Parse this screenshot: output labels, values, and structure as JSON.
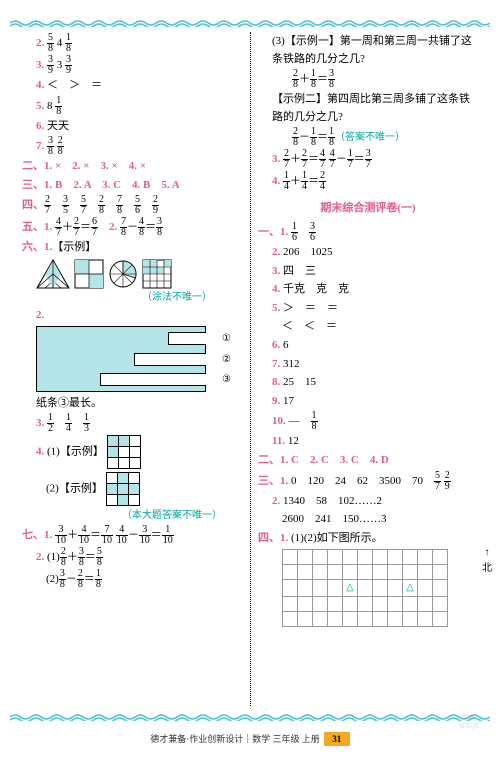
{
  "left": {
    "l2": {
      "n": "2.",
      "a_t": "5",
      "a_b": "8",
      "sp": "  4  ",
      "b_t": "1",
      "b_b": "8"
    },
    "l3": {
      "n": "3.",
      "a_t": "3",
      "a_b": "9",
      "sp": "  3  ",
      "b_t": "3",
      "b_b": "9"
    },
    "l4": {
      "n": "4.",
      "t": "＜　＞　＝"
    },
    "l5": {
      "n": "5.",
      "a": "8  ",
      "b_t": "1",
      "b_b": "8"
    },
    "l6": {
      "n": "6.",
      "t": "天天"
    },
    "l7": {
      "n": "7.",
      "a_t": "3",
      "a_b": "8",
      "sp": "  ",
      "b_t": "2",
      "b_b": "8"
    },
    "s2": {
      "h": "二、",
      "t": "1. ×　2. ×　3. ×　4. ×"
    },
    "s3": {
      "h": "三、",
      "t": "1. B　2. A　3. C　4. B　5. A"
    },
    "s4": {
      "h": "四、",
      "f": [
        [
          "2",
          "7"
        ],
        [
          "3",
          "5"
        ],
        [
          "5",
          "7"
        ],
        [
          "2",
          "8"
        ],
        [
          "7",
          "8"
        ],
        [
          "5",
          "6"
        ],
        [
          "2",
          "9"
        ]
      ]
    },
    "s5": {
      "h": "五、",
      "n1": "1.",
      "e1": [
        [
          "4",
          "7"
        ],
        "＋",
        [
          "2",
          "7"
        ],
        "＝",
        [
          "6",
          "7"
        ]
      ],
      "n2": "2.",
      "e2": [
        [
          "7",
          "8"
        ],
        "－",
        [
          "4",
          "8"
        ],
        "＝",
        [
          "3",
          "8"
        ]
      ]
    },
    "s6": {
      "h": "六、",
      "n1": "1.",
      "t1": "【示例】"
    },
    "note1": "（涂法不唯一）",
    "s6_2": {
      "n": "2."
    },
    "paper_note": "纸条③最长。",
    "s6_3": {
      "n": "3.",
      "f": [
        [
          "1",
          "2"
        ],
        [
          "1",
          "4"
        ],
        [
          "1",
          "3"
        ]
      ]
    },
    "s6_4": {
      "n": "4.",
      "a": "(1)【示例】",
      "b": "(2)【示例】"
    },
    "note2": "（本大题答案不唯一）",
    "s7": {
      "h": "七、",
      "n1": "1.",
      "e1": [
        [
          "3",
          "10"
        ],
        "＋",
        [
          "4",
          "10"
        ],
        "＝",
        [
          "7",
          "10"
        ]
      ],
      "sp": "  ",
      "e1b": [
        [
          "4",
          "10"
        ],
        "－",
        [
          "3",
          "10"
        ],
        "＝",
        [
          "1",
          "10"
        ]
      ],
      "n2": "2.",
      "a": "(1)",
      "e2": [
        [
          "2",
          "8"
        ],
        "＋",
        [
          "3",
          "8"
        ],
        "＝",
        [
          "5",
          "8"
        ]
      ],
      "b": "(2)",
      "e3": [
        [
          "3",
          "8"
        ],
        "－",
        [
          "2",
          "8"
        ],
        "＝",
        [
          "1",
          "8"
        ]
      ]
    }
  },
  "right": {
    "r1": {
      "a": "(3)【示例一】",
      "t": "第一周和第三周一共铺了这条铁路的几分之几?"
    },
    "r1e": [
      [
        "2",
        "8"
      ],
      "＋",
      [
        "1",
        "8"
      ],
      "＝",
      [
        "3",
        "8"
      ]
    ],
    "r2": {
      "a": "【示例二】",
      "t": "第四周比第三周多铺了这条铁路的几分之几?"
    },
    "r2e": [
      [
        "2",
        "8"
      ],
      "－",
      [
        "1",
        "8"
      ],
      "＝",
      [
        "1",
        "8"
      ]
    ],
    "r2n": "（答案不唯一）",
    "r3": {
      "n": "3.",
      "e": [
        [
          "2",
          "7"
        ],
        "＋",
        [
          "2",
          "7"
        ],
        "＝",
        [
          "4",
          "7"
        ],
        "  ",
        [
          "4",
          "7"
        ],
        "－",
        [
          "1",
          "7"
        ],
        "＝",
        [
          "3",
          "7"
        ]
      ]
    },
    "r4": {
      "n": "4.",
      "e": [
        [
          "1",
          "4"
        ],
        "＋",
        [
          "1",
          "4"
        ],
        "＝",
        [
          "2",
          "4"
        ]
      ]
    },
    "title": "期末综合测评卷(一)",
    "q1": {
      "h": "一、",
      "n": "1.",
      "f": [
        [
          "1",
          "6"
        ],
        [
          "3",
          "6"
        ]
      ]
    },
    "q2": {
      "n": "2.",
      "t": "206　1025"
    },
    "q3": {
      "n": "3.",
      "t": "四　三"
    },
    "q4": {
      "n": "4.",
      "t": "千克　克　克"
    },
    "q5": {
      "n": "5.",
      "t1": "＞　＝　＝",
      "t2": "＜　＜　＝"
    },
    "q6": {
      "n": "6.",
      "t": "6"
    },
    "q7": {
      "n": "7.",
      "t": "312"
    },
    "q8": {
      "n": "8.",
      "t": "25　15"
    },
    "q9": {
      "n": "9.",
      "t": "17"
    },
    "q10": {
      "n": "10.",
      "t": "—　",
      "f": [
        "1",
        "8"
      ]
    },
    "q11": {
      "n": "11.",
      "t": "12"
    },
    "s2": {
      "h": "二、",
      "t": "1. C　2. C　3. C　4. D"
    },
    "s3": {
      "h": "三、",
      "n1": "1.",
      "t1": "0　120　24　62　3500　70　",
      "f1": [
        "5",
        "7"
      ],
      "sp": "  ",
      "f2": [
        "2",
        "9"
      ],
      "n2": "2.",
      "t2": "1340　58　102……2",
      "t3": "2600　241　150……3"
    },
    "s4": {
      "h": "四、",
      "n": "1.",
      "t": "(1)(2)如下图所示。"
    },
    "north": "北"
  },
  "footer": {
    "t": "德才兼备·作业创新设计｜数学 三年级 上册",
    "pn": "31"
  },
  "colors": {
    "pink": "#e35d8a",
    "teal": "#00a69c",
    "cyan": "#b3e5e8",
    "orange": "#f5a623",
    "wave": "#4ec3d5"
  }
}
